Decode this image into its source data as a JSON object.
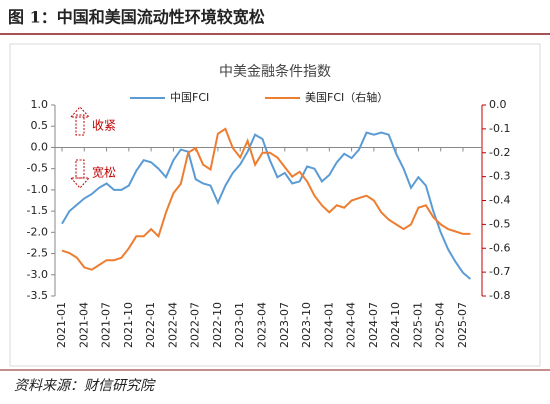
{
  "title": "图 1：中国和美国流动性环境较宽松",
  "source": "资料来源：财信研究院",
  "chart_data": {
    "type": "line",
    "title": "中美金融条件指数",
    "categories": [
      "2021-01",
      null,
      null,
      "2021-04",
      null,
      null,
      "2021-07",
      null,
      null,
      "2021-10",
      null,
      null,
      "2022-01",
      null,
      null,
      "2022-04",
      null,
      null,
      "2022-07",
      null,
      null,
      "2022-10",
      null,
      null,
      "2023-01",
      null,
      null,
      "2023-04",
      null,
      null,
      "2023-07",
      null,
      null,
      "2023-10",
      null,
      null,
      "2024-01",
      null,
      null,
      "2024-04",
      null,
      null,
      "2024-07",
      null,
      null,
      "2024-10",
      null,
      null,
      "2025-01",
      null,
      null,
      "2025-04",
      null,
      null,
      "2025-07",
      null
    ],
    "series": [
      {
        "name": "中国FCI",
        "color": "#5b9bd5",
        "axis": "y",
        "values": [
          -1.8,
          -1.5,
          -1.35,
          -1.2,
          -1.1,
          -0.95,
          -0.85,
          -1.0,
          -1.0,
          -0.9,
          -0.55,
          -0.3,
          -0.35,
          -0.5,
          -0.7,
          -0.3,
          -0.05,
          -0.1,
          -0.75,
          -0.85,
          -0.9,
          -1.3,
          -0.9,
          -0.6,
          -0.4,
          -0.1,
          0.3,
          0.2,
          -0.3,
          -0.7,
          -0.6,
          -0.85,
          -0.8,
          -0.45,
          -0.5,
          -0.8,
          -0.65,
          -0.35,
          -0.15,
          -0.25,
          -0.05,
          0.35,
          0.3,
          0.35,
          0.3,
          -0.15,
          -0.5,
          -0.95,
          -0.7,
          -0.9,
          -1.5,
          -2.0,
          -2.4,
          -2.7,
          -2.95,
          -3.1
        ]
      },
      {
        "name": "美国FCI（右轴）",
        "color": "#ed7d31",
        "axis": "y2",
        "values": [
          -0.61,
          -0.62,
          -0.64,
          -0.68,
          -0.69,
          -0.67,
          -0.65,
          -0.65,
          -0.64,
          -0.6,
          -0.55,
          -0.55,
          -0.52,
          -0.55,
          -0.45,
          -0.37,
          -0.33,
          -0.2,
          -0.18,
          -0.25,
          -0.27,
          -0.12,
          -0.1,
          -0.18,
          -0.22,
          -0.15,
          -0.25,
          -0.2,
          -0.2,
          -0.22,
          -0.26,
          -0.3,
          -0.28,
          -0.32,
          -0.38,
          -0.42,
          -0.45,
          -0.42,
          -0.43,
          -0.4,
          -0.39,
          -0.38,
          -0.4,
          -0.45,
          -0.48,
          -0.5,
          -0.52,
          -0.5,
          -0.43,
          -0.42,
          -0.47,
          -0.5,
          -0.52,
          -0.53,
          -0.54,
          -0.54
        ]
      }
    ],
    "ylim": [
      -3.5,
      1
    ],
    "yticks": [
      {
        "value": 1,
        "label": "1.0"
      },
      0.5,
      {
        "value": 0,
        "label": "0.0"
      },
      -0.5,
      {
        "value": -1,
        "label": "-1.0"
      },
      -1.5,
      {
        "value": -2,
        "label": "-2.0"
      },
      -2.5,
      {
        "value": -3,
        "label": "-3.0"
      },
      -3.5
    ],
    "y2lim": [
      -0.8,
      0
    ],
    "y2ticks": [
      {
        "value": 0,
        "label": "0.0"
      },
      -0.1,
      -0.2,
      -0.3,
      -0.4,
      -0.5,
      -0.6,
      -0.7,
      -0.8
    ],
    "y2color": "#c00000",
    "annotations": [
      "收紧",
      "宽松"
    ]
  }
}
